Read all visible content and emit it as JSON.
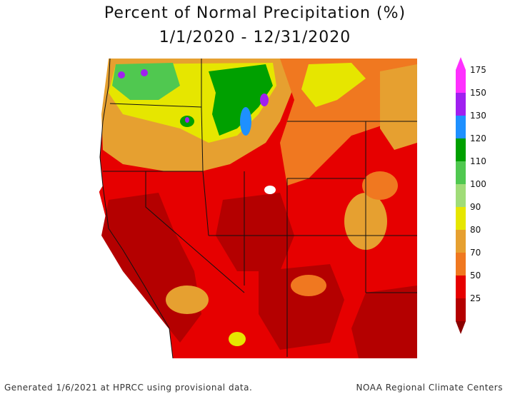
{
  "title": {
    "line1": "Percent of Normal Precipitation (%)",
    "line2": "1/1/2020 - 12/31/2020"
  },
  "legend": {
    "items": [
      {
        "label": "175",
        "color": "#ff30ff"
      },
      {
        "label": "150",
        "color": "#a020f0"
      },
      {
        "label": "130",
        "color": "#1e90ff"
      },
      {
        "label": "120",
        "color": "#00a000"
      },
      {
        "label": "110",
        "color": "#50c850"
      },
      {
        "label": "100",
        "color": "#a0dc78"
      },
      {
        "label": "90",
        "color": "#e6e600"
      },
      {
        "label": "80",
        "color": "#e6a030"
      },
      {
        "label": "70",
        "color": "#f07820"
      },
      {
        "label": "50",
        "color": "#e60000"
      },
      {
        "label": "25",
        "color": "#b40000"
      }
    ],
    "bottom_color": "#8b0000"
  },
  "footer": {
    "left": "Generated 1/6/2021 at HPRCC using provisional data.",
    "right": "NOAA Regional Climate Centers"
  }
}
